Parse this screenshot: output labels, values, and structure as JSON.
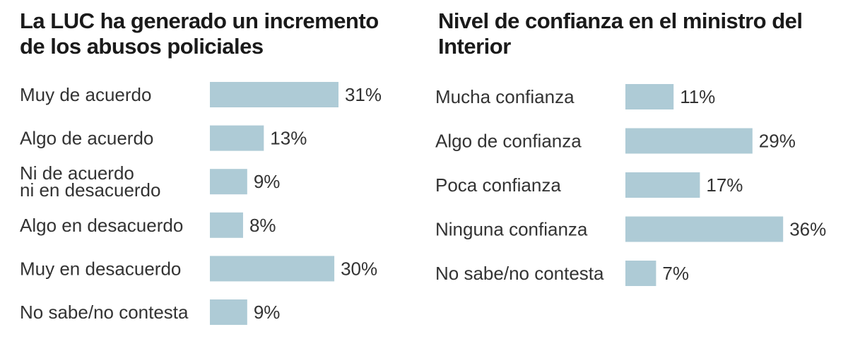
{
  "colors": {
    "bar": "#aecbd6",
    "text": "#333333",
    "title": "#1a1a1a"
  },
  "chart_data": [
    {
      "type": "bar",
      "orientation": "horizontal",
      "title": "La LUC ha generado un incremento de los abusos policiales",
      "categories": [
        "Muy de acuerdo",
        "Algo de acuerdo",
        "Ni de acuerdo\nni en desacuerdo",
        "Algo en desacuerdo",
        "Muy en desacuerdo",
        "No sabe/no contesta"
      ],
      "values": [
        31,
        13,
        9,
        8,
        30,
        9
      ],
      "value_labels": [
        "31%",
        "13%",
        "9%",
        "8%",
        "30%",
        "9%"
      ],
      "unit": "%",
      "grid": false
    },
    {
      "type": "bar",
      "orientation": "horizontal",
      "title": "Nivel de confianza en el ministro del Interior",
      "categories": [
        "Mucha confianza",
        "Algo de confianza",
        "Poca confianza",
        "Ninguna confianza",
        "No sabe/no contesta"
      ],
      "values": [
        11,
        29,
        17,
        36,
        7
      ],
      "value_labels": [
        "11%",
        "29%",
        "17%",
        "36%",
        "7%"
      ],
      "unit": "%",
      "grid": false
    }
  ]
}
